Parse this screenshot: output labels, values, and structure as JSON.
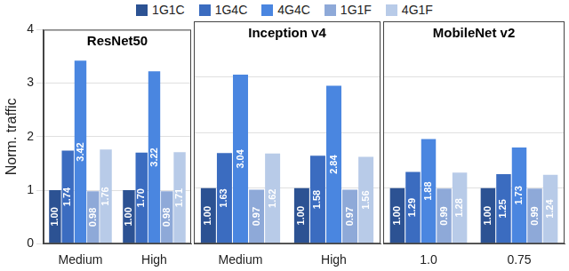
{
  "chart_data": [
    {
      "type": "bar",
      "title": "ResNet50",
      "y_label": "Norm. traffic",
      "categories": [
        "Medium",
        "High"
      ],
      "series": [
        {
          "name": "1G1C",
          "color": "#2c5293",
          "values": [
            1.0,
            1.0
          ],
          "value_labels": [
            "1.00",
            "1.00"
          ]
        },
        {
          "name": "1G4C",
          "color": "#3b6cc0",
          "values": [
            1.74,
            1.7
          ],
          "value_labels": [
            "1.74",
            "1.70"
          ]
        },
        {
          "name": "4G4C",
          "color": "#4a86e0",
          "values": [
            3.42,
            3.22
          ],
          "value_labels": [
            "3.42",
            "3.22"
          ]
        },
        {
          "name": "1G1F",
          "color": "#8ea9d8",
          "values": [
            0.98,
            0.98
          ],
          "value_labels": [
            "0.98",
            "0.98"
          ]
        },
        {
          "name": "4G1F",
          "color": "#b8cbe8",
          "values": [
            1.76,
            1.71
          ],
          "value_labels": [
            "1.76",
            "1.71"
          ]
        }
      ],
      "ylim": [
        0,
        4
      ],
      "yticks": [
        0,
        1,
        2,
        3,
        4
      ],
      "grid": true,
      "data_labels": true,
      "legend": "top"
    },
    {
      "type": "bar",
      "title": "Inception v4",
      "categories": [
        "Medium",
        "High"
      ],
      "series": [
        {
          "name": "1G1C",
          "color": "#2c5293",
          "values": [
            1.0,
            1.0
          ],
          "value_labels": [
            "1.00",
            "1.00"
          ]
        },
        {
          "name": "1G4C",
          "color": "#3b6cc0",
          "values": [
            1.63,
            1.58
          ],
          "value_labels": [
            "1.63",
            "1.58"
          ]
        },
        {
          "name": "4G4C",
          "color": "#4a86e0",
          "values": [
            3.04,
            2.84
          ],
          "value_labels": [
            "3.04",
            "2.84"
          ]
        },
        {
          "name": "1G1F",
          "color": "#8ea9d8",
          "values": [
            0.97,
            0.97
          ],
          "value_labels": [
            "0.97",
            "0.97"
          ]
        },
        {
          "name": "4G1F",
          "color": "#b8cbe8",
          "values": [
            1.62,
            1.56
          ],
          "value_labels": [
            "1.62",
            "1.56"
          ]
        }
      ],
      "ylim": [
        0,
        4
      ],
      "yticks": [
        0,
        1,
        2,
        3,
        4
      ],
      "grid": true,
      "data_labels": true,
      "tick_labels": "x"
    },
    {
      "type": "bar",
      "title": "MobileNet v2",
      "categories": [
        "1.0",
        "0.75"
      ],
      "series": [
        {
          "name": "1G1C",
          "color": "#2c5293",
          "values": [
            1.0,
            1.0
          ],
          "value_labels": [
            "1.00",
            "1.00"
          ]
        },
        {
          "name": "1G4C",
          "color": "#3b6cc0",
          "values": [
            1.29,
            1.25
          ],
          "value_labels": [
            "1.29",
            "1.25"
          ]
        },
        {
          "name": "4G4C",
          "color": "#4a86e0",
          "values": [
            1.88,
            1.73
          ],
          "value_labels": [
            "1.88",
            "1.73"
          ]
        },
        {
          "name": "1G1F",
          "color": "#8ea9d8",
          "values": [
            0.99,
            0.99
          ],
          "value_labels": [
            "0.99",
            "0.99"
          ]
        },
        {
          "name": "4G1F",
          "color": "#b8cbe8",
          "values": [
            1.28,
            1.24
          ],
          "value_labels": [
            "1.28",
            "1.24"
          ]
        }
      ],
      "ylim": [
        0,
        4
      ],
      "yticks": [
        0,
        1,
        2,
        3,
        4
      ],
      "grid": true,
      "data_labels": true,
      "tick_labels": "x"
    }
  ]
}
